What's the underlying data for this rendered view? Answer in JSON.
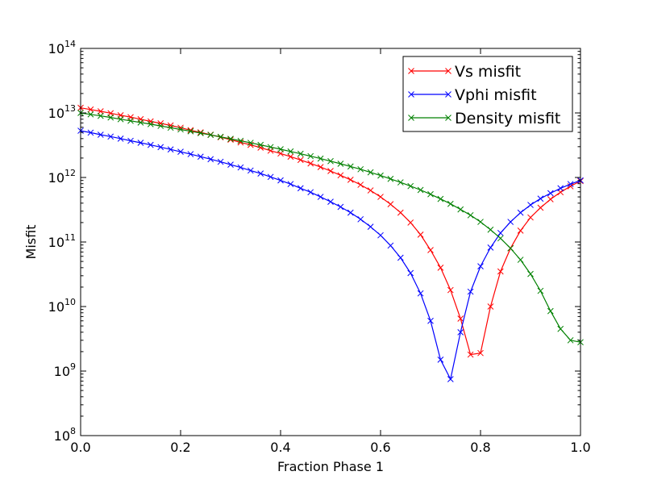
{
  "chart_data": {
    "type": "line",
    "xlabel": "Fraction Phase 1",
    "ylabel": "Misfit",
    "xlim": [
      0.0,
      1.0
    ],
    "ylim": [
      100000000.0,
      100000000000000.0
    ],
    "yscale": "log",
    "grid": false,
    "legend_position": "top-right",
    "x_ticks": [
      "0.0",
      "0.2",
      "0.4",
      "0.6",
      "0.8",
      "1.0"
    ],
    "x_tick_values": [
      0.0,
      0.2,
      0.4,
      0.6,
      0.8,
      1.0
    ],
    "y_ticks": [
      {
        "base": "10",
        "exp": "8",
        "value": 100000000.0
      },
      {
        "base": "10",
        "exp": "9",
        "value": 1000000000.0
      },
      {
        "base": "10",
        "exp": "10",
        "value": 10000000000.0
      },
      {
        "base": "10",
        "exp": "11",
        "value": 100000000000.0
      },
      {
        "base": "10",
        "exp": "12",
        "value": 1000000000000.0
      },
      {
        "base": "10",
        "exp": "13",
        "value": 10000000000000.0
      },
      {
        "base": "10",
        "exp": "14",
        "value": 100000000000000.0
      }
    ],
    "x": [
      0.0,
      0.02,
      0.04,
      0.06,
      0.08,
      0.1,
      0.12,
      0.14,
      0.16,
      0.18,
      0.2,
      0.22,
      0.24,
      0.26,
      0.28,
      0.3,
      0.32,
      0.34,
      0.36,
      0.38,
      0.4,
      0.42,
      0.44,
      0.46,
      0.48,
      0.5,
      0.52,
      0.54,
      0.56,
      0.58,
      0.6,
      0.62,
      0.64,
      0.66,
      0.68,
      0.7,
      0.72,
      0.74,
      0.76,
      0.78,
      0.8,
      0.82,
      0.84,
      0.86,
      0.88,
      0.9,
      0.92,
      0.94,
      0.96,
      0.98,
      1.0
    ],
    "series": [
      {
        "name": "Vs misfit",
        "color": "#ff0000",
        "values": [
          12000000000000.0,
          11300000000000.0,
          10600000000000.0,
          9900000000000.0,
          9200000000000.0,
          8600000000000.0,
          8000000000000.0,
          7400000000000.0,
          6900000000000.0,
          6400000000000.0,
          5900000000000.0,
          5400000000000.0,
          5000000000000.0,
          4600000000000.0,
          4200000000000.0,
          3850000000000.0,
          3500000000000.0,
          3200000000000.0,
          2900000000000.0,
          2600000000000.0,
          2350000000000.0,
          2100000000000.0,
          1870000000000.0,
          1650000000000.0,
          1450000000000.0,
          1260000000000.0,
          1080000000000.0,
          920000000000.0,
          770000000000.0,
          630000000000.0,
          500000000000.0,
          385000000000.0,
          285000000000.0,
          200000000000.0,
          130000000000.0,
          75000000000.0,
          40000000000.0,
          18000000000.0,
          6500000000.0,
          1800000000.0,
          1900000000.0,
          10000000000.0,
          35000000000.0,
          80000000000.0,
          150000000000.0,
          240000000000.0,
          340000000000.0,
          460000000000.0,
          590000000000.0,
          730000000000.0,
          880000000000.0
        ]
      },
      {
        "name": "Vphi misfit",
        "color": "#0000ff",
        "values": [
          5300000000000.0,
          4950000000000.0,
          4600000000000.0,
          4300000000000.0,
          4000000000000.0,
          3700000000000.0,
          3450000000000.0,
          3200000000000.0,
          2950000000000.0,
          2720000000000.0,
          2500000000000.0,
          2300000000000.0,
          2100000000000.0,
          1920000000000.0,
          1750000000000.0,
          1580000000000.0,
          1430000000000.0,
          1280000000000.0,
          1150000000000.0,
          1020000000000.0,
          900000000000.0,
          790000000000.0,
          680000000000.0,
          590000000000.0,
          500000000000.0,
          420000000000.0,
          350000000000.0,
          285000000000.0,
          225000000000.0,
          172000000000.0,
          127000000000.0,
          88000000000.0,
          57000000000.0,
          33000000000.0,
          16000000000.0,
          6000000000.0,
          1500000000.0,
          750000000.0,
          4000000000.0,
          17000000000.0,
          42000000000.0,
          82000000000.0,
          138000000000.0,
          205000000000.0,
          285000000000.0,
          375000000000.0,
          470000000000.0,
          570000000000.0,
          680000000000.0,
          790000000000.0,
          900000000000.0
        ]
      },
      {
        "name": "Density misfit",
        "color": "#008000",
        "values": [
          10000000000000.0,
          9500000000000.0,
          9000000000000.0,
          8500000000000.0,
          8000000000000.0,
          7550000000000.0,
          7100000000000.0,
          6700000000000.0,
          6300000000000.0,
          5900000000000.0,
          5550000000000.0,
          5200000000000.0,
          4870000000000.0,
          4560000000000.0,
          4260000000000.0,
          3970000000000.0,
          3700000000000.0,
          3440000000000.0,
          3200000000000.0,
          2960000000000.0,
          2740000000000.0,
          2530000000000.0,
          2330000000000.0,
          2140000000000.0,
          1960000000000.0,
          1790000000000.0,
          1630000000000.0,
          1480000000000.0,
          1340000000000.0,
          1200000000000.0,
          1070000000000.0,
          950000000000.0,
          840000000000.0,
          735000000000.0,
          640000000000.0,
          550000000000.0,
          465000000000.0,
          390000000000.0,
          320000000000.0,
          260000000000.0,
          205000000000.0,
          155000000000.0,
          114000000000.0,
          80000000000.0,
          53000000000.0,
          32000000000.0,
          17500000000.0,
          8500000000.0,
          4500000000.0,
          3000000000.0,
          2800000000.0
        ]
      }
    ]
  }
}
